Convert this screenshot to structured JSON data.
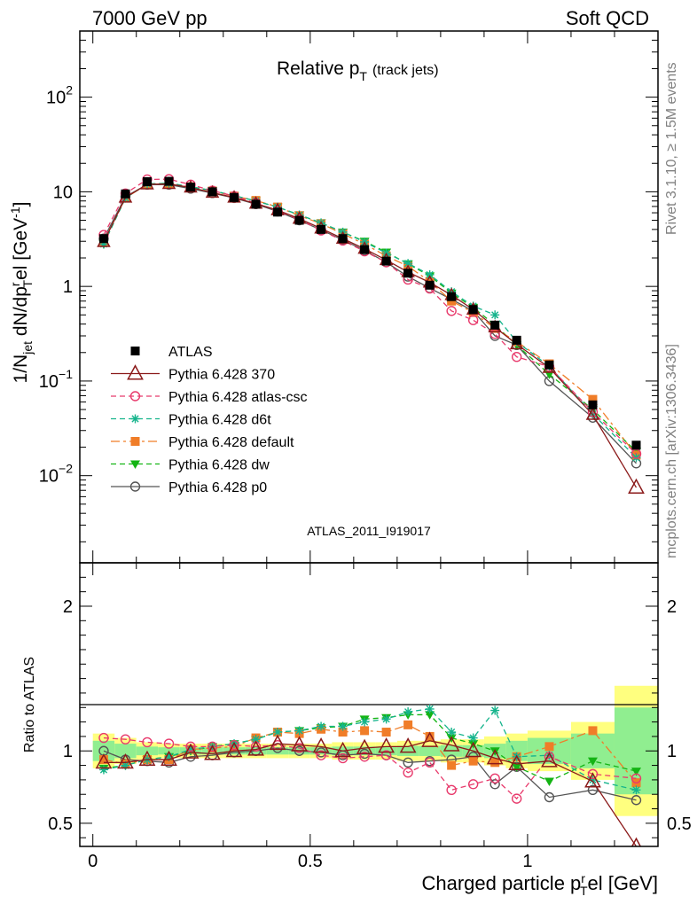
{
  "header": {
    "left": "7000 GeV pp",
    "right": "Soft QCD"
  },
  "side_labels": {
    "rivet": "Rivet 3.1.10, ≥ 1.5M events",
    "mcplots": "mcplots.cern.ch [arXiv:1306.3436]"
  },
  "colors": {
    "ATLAS": "#000000",
    "p370": "#8b1a1a",
    "atlas_csc": "#e83a6c",
    "d6t": "#16b48c",
    "default": "#f07d28",
    "dw": "#14b414",
    "p0": "#555555",
    "band_yellow": "#ffff7f",
    "band_green": "#90ee90"
  },
  "chart_data": [
    {
      "type": "line",
      "title_main": "Relative p",
      "title_sub": "T",
      "title_note": "(track jets)",
      "ylabel": "1/N",
      "ylabel_jet": "jet",
      "ylabel_mid": " dN/dp",
      "ylabel_r": "r",
      "ylabel_T": "T",
      "ylabel_end": "el [GeV",
      "ylabel_exp": "-1",
      "ylabel_close": "]",
      "yscale": "log",
      "ylim": [
        0.0012,
        500
      ],
      "xlim": [
        -0.03,
        1.3
      ],
      "yticks": [
        {
          "value": 0.01,
          "base": "10",
          "exp": "−2"
        },
        {
          "value": 0.1,
          "base": "10",
          "exp": "−1"
        },
        {
          "value": 1,
          "base": "1",
          "exp": ""
        },
        {
          "value": 10,
          "base": "10",
          "exp": ""
        },
        {
          "value": 100,
          "base": "10",
          "exp": "2"
        }
      ],
      "watermark": "ATLAS_2011_I919017",
      "x": [
        0.025,
        0.075,
        0.125,
        0.175,
        0.225,
        0.275,
        0.325,
        0.375,
        0.425,
        0.475,
        0.525,
        0.575,
        0.625,
        0.675,
        0.725,
        0.775,
        0.825,
        0.875,
        0.925,
        0.975,
        1.05,
        1.15,
        1.25
      ],
      "series": [
        {
          "name": "ATLAS",
          "key": "ATLAS",
          "values": [
            3.2,
            9.5,
            12.8,
            12.9,
            11.2,
            10.0,
            8.7,
            7.4,
            6.1,
            5.0,
            4.0,
            3.2,
            2.45,
            1.85,
            1.38,
            1.03,
            0.78,
            0.57,
            0.39,
            0.27,
            0.148,
            0.056,
            0.021
          ]
        },
        {
          "name": "Pythia 6.428 370",
          "key": "p370",
          "values": [
            2.95,
            8.7,
            12.0,
            12.1,
            11.1,
            9.8,
            8.7,
            7.5,
            6.4,
            5.2,
            4.1,
            3.2,
            2.5,
            1.9,
            1.42,
            1.1,
            0.81,
            0.57,
            0.37,
            0.245,
            0.138,
            0.044,
            0.0075
          ]
        },
        {
          "name": "Pythia 6.428 atlas-csc",
          "key": "atlas_csc",
          "values": [
            3.5,
            9.6,
            13.5,
            13.6,
            11.9,
            10.3,
            9.0,
            7.6,
            6.3,
            5.1,
            3.9,
            3.05,
            2.35,
            1.8,
            1.18,
            0.95,
            0.55,
            0.44,
            0.315,
            0.18,
            0.142,
            0.047,
            0.017
          ]
        },
        {
          "name": "Pythia 6.428 d6t",
          "key": "d6t",
          "values": [
            2.8,
            8.6,
            12.1,
            12.3,
            11.3,
            10.3,
            9.1,
            8.0,
            6.9,
            5.7,
            4.7,
            3.75,
            2.95,
            2.25,
            1.75,
            1.33,
            0.88,
            0.62,
            0.5,
            0.26,
            0.143,
            0.045,
            0.0155
          ]
        },
        {
          "name": "Pythia 6.428 default",
          "key": "default",
          "values": [
            3.0,
            8.6,
            12.0,
            12.1,
            11.3,
            10.2,
            9.0,
            8.1,
            6.9,
            5.6,
            4.6,
            3.6,
            2.8,
            2.1,
            1.63,
            1.13,
            0.7,
            0.53,
            0.36,
            0.26,
            0.152,
            0.064,
            0.0165
          ]
        },
        {
          "name": "Pythia 6.428 dw",
          "key": "dw",
          "values": [
            2.8,
            8.6,
            12.1,
            12.3,
            11.3,
            10.3,
            9.1,
            8.0,
            6.9,
            5.7,
            4.7,
            3.75,
            3.0,
            2.3,
            1.73,
            1.29,
            0.85,
            0.6,
            0.39,
            0.24,
            0.118,
            0.05,
            0.018
          ]
        },
        {
          "name": "Pythia 6.428 p0",
          "key": "p0",
          "values": [
            3.2,
            8.9,
            11.9,
            11.9,
            10.8,
            9.7,
            8.6,
            7.4,
            6.2,
            5.0,
            3.95,
            3.1,
            2.4,
            1.8,
            1.27,
            0.96,
            0.73,
            0.55,
            0.3,
            0.24,
            0.1,
            0.041,
            0.0135
          ]
        }
      ]
    },
    {
      "type": "line",
      "ylabel": "Ratio to ATLAS",
      "xlabel": "Charged particle p",
      "xlabel_sub": "T",
      "xlabel_r": "r",
      "xlabel_end": "el [GeV]",
      "ylim": [
        0.34,
        2.3
      ],
      "xlim": [
        -0.03,
        1.3
      ],
      "yticks": [
        {
          "value": 0.5,
          "label": "0.5"
        },
        {
          "value": 1,
          "label": "1"
        },
        {
          "value": 2,
          "label": "2"
        }
      ],
      "xticks": [
        {
          "value": 0,
          "label": "0"
        },
        {
          "value": 0.5,
          "label": "0.5"
        },
        {
          "value": 1,
          "label": "1"
        }
      ],
      "x": [
        0.025,
        0.075,
        0.125,
        0.175,
        0.225,
        0.275,
        0.325,
        0.375,
        0.425,
        0.475,
        0.525,
        0.575,
        0.625,
        0.675,
        0.725,
        0.775,
        0.825,
        0.875,
        0.925,
        0.975,
        1.05,
        1.15,
        1.25
      ],
      "bands": {
        "edges": [
          0.0,
          0.05,
          0.1,
          0.15,
          0.2,
          0.25,
          0.3,
          0.35,
          0.4,
          0.45,
          0.5,
          0.55,
          0.6,
          0.65,
          0.7,
          0.75,
          0.8,
          0.85,
          0.9,
          0.95,
          1.0,
          1.1,
          1.2,
          1.3
        ],
        "yellow": [
          0.12,
          0.09,
          0.06,
          0.05,
          0.05,
          0.05,
          0.05,
          0.05,
          0.05,
          0.05,
          0.05,
          0.06,
          0.06,
          0.06,
          0.07,
          0.07,
          0.08,
          0.08,
          0.1,
          0.12,
          0.14,
          0.2,
          0.45
        ],
        "green": [
          0.07,
          0.05,
          0.03,
          0.025,
          0.025,
          0.025,
          0.025,
          0.025,
          0.025,
          0.025,
          0.025,
          0.03,
          0.03,
          0.03,
          0.035,
          0.035,
          0.04,
          0.04,
          0.05,
          0.07,
          0.09,
          0.12,
          0.3
        ]
      },
      "series": [
        {
          "name": "Pythia 6.428 370",
          "key": "p370",
          "values": [
            0.92,
            0.92,
            0.94,
            0.94,
            0.99,
            0.98,
            1.0,
            1.01,
            1.05,
            1.04,
            1.03,
            1.0,
            1.02,
            1.03,
            1.03,
            1.07,
            1.04,
            1.0,
            0.95,
            0.91,
            0.93,
            0.79,
            0.34
          ]
        },
        {
          "name": "Pythia 6.428 atlas-csc",
          "key": "atlas_csc",
          "values": [
            1.09,
            1.08,
            1.06,
            1.05,
            1.03,
            1.03,
            1.04,
            1.03,
            1.04,
            1.02,
            0.97,
            0.95,
            0.96,
            0.97,
            0.85,
            0.92,
            0.73,
            0.77,
            0.81,
            0.67,
            0.96,
            0.84,
            0.81
          ]
        },
        {
          "name": "Pythia 6.428 d6t",
          "key": "d6t",
          "values": [
            0.87,
            0.9,
            0.94,
            0.96,
            1.01,
            1.03,
            1.05,
            1.08,
            1.13,
            1.14,
            1.17,
            1.17,
            1.2,
            1.22,
            1.27,
            1.29,
            1.13,
            1.09,
            1.28,
            0.96,
            0.97,
            0.8,
            0.73
          ]
        },
        {
          "name": "Pythia 6.428 default",
          "key": "default",
          "values": [
            0.94,
            0.91,
            0.94,
            0.94,
            1.01,
            1.02,
            1.03,
            1.09,
            1.13,
            1.12,
            1.15,
            1.13,
            1.14,
            1.13,
            1.18,
            1.1,
            0.9,
            0.93,
            0.92,
            0.96,
            1.03,
            1.14,
            0.78
          ]
        },
        {
          "name": "Pythia 6.428 dw",
          "key": "dw",
          "values": [
            0.88,
            0.9,
            0.94,
            0.96,
            1.0,
            1.03,
            1.05,
            1.08,
            1.13,
            1.14,
            1.16,
            1.17,
            1.22,
            1.23,
            1.25,
            1.25,
            1.09,
            1.05,
            1.0,
            0.89,
            0.79,
            0.93,
            0.86
          ]
        },
        {
          "name": "Pythia 6.428 p0",
          "key": "p0",
          "values": [
            1.0,
            0.94,
            0.93,
            0.92,
            0.96,
            0.97,
            0.99,
            1.0,
            1.02,
            1.0,
            0.99,
            0.97,
            0.98,
            0.97,
            0.92,
            0.93,
            0.94,
            0.96,
            0.77,
            0.89,
            0.68,
            0.73,
            0.66
          ]
        }
      ]
    }
  ]
}
